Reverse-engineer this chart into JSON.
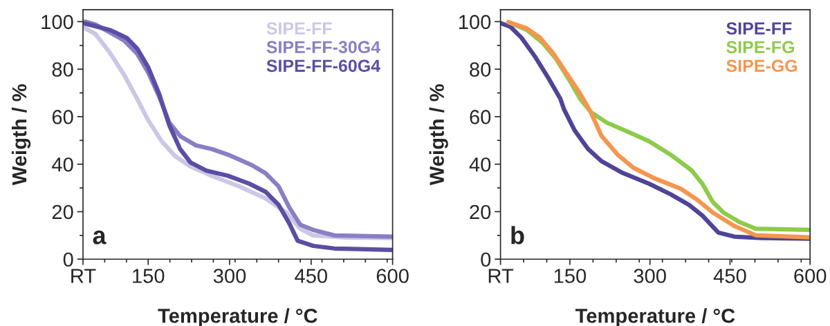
{
  "chart_data": [
    {
      "type": "line",
      "xlabel": "Temperature / °C",
      "ylabel": "Weigth / %",
      "annotations": [
        "a"
      ],
      "legend": "top right",
      "grid": false,
      "xlim": [
        30,
        600
      ],
      "xticks": [
        {
          "value": 30,
          "label": "RT"
        },
        150,
        300,
        450,
        600
      ],
      "ylim": [
        0,
        105
      ],
      "yticks": [
        0,
        20,
        40,
        60,
        80,
        100
      ],
      "series": [
        {
          "name": "SIPE-FF",
          "color": "#cbc7e5",
          "x": [
            30,
            53,
            81,
            106,
            130,
            150,
            175,
            199,
            228,
            268,
            317,
            366,
            405,
            430,
            454,
            513,
            600
          ],
          "values": [
            97.7,
            94.8,
            86.4,
            77.5,
            67.4,
            58.5,
            49.6,
            43.5,
            39,
            35,
            30.7,
            25.6,
            19.5,
            12.8,
            10,
            9.1,
            8.9
          ]
        },
        {
          "name": "SIPE-FF-30G4",
          "color": "#8a7ec4",
          "x": [
            34,
            53,
            81,
            106,
            130,
            150,
            170,
            189,
            209,
            238,
            268,
            297,
            341,
            366,
            390,
            410,
            430,
            454,
            493,
            600
          ],
          "values": [
            100,
            98.8,
            95.3,
            92,
            86.4,
            78.6,
            68.6,
            57.4,
            51.8,
            47.9,
            46.3,
            44,
            39.6,
            36.2,
            30.7,
            21.7,
            14.5,
            12.3,
            10,
            9.5
          ]
        },
        {
          "name": "SIPE-FF-60G4",
          "color": "#5a4ea4",
          "x": [
            34,
            81,
            111,
            130,
            150,
            170,
            189,
            209,
            228,
            257,
            297,
            336,
            366,
            390,
            410,
            425,
            454,
            493,
            600
          ],
          "values": [
            99.2,
            96.4,
            93.1,
            88.6,
            80.8,
            69.7,
            56.3,
            46.3,
            40.7,
            37.3,
            35.1,
            31.8,
            28.4,
            22.9,
            15,
            7.8,
            5.6,
            4.5,
            3.9
          ]
        }
      ]
    },
    {
      "type": "line",
      "xlabel": "Temperature / °C",
      "ylabel": "Weigth / %",
      "annotations": [
        "b"
      ],
      "legend": "top right",
      "grid": false,
      "xlim": [
        20,
        600
      ],
      "xticks": [
        {
          "value": 20,
          "label": "RT"
        },
        150,
        300,
        450,
        600
      ],
      "ylim": [
        0,
        105
      ],
      "yticks": [
        0,
        20,
        40,
        60,
        80,
        100
      ],
      "series": [
        {
          "name": "SIPE-FF",
          "color": "#4f4597",
          "x": [
            20,
            39,
            59,
            84,
            109,
            132,
            139,
            159,
            184,
            209,
            249,
            298,
            338,
            373,
            398,
            428,
            458,
            508,
            600
          ],
          "values": [
            99.4,
            97.8,
            93.3,
            85.5,
            76.5,
            67.6,
            63.1,
            54.2,
            46.4,
            41.3,
            36.3,
            31.8,
            27.4,
            22.9,
            18.4,
            11.2,
            9.5,
            8.9,
            8.6
          ]
        },
        {
          "name": "SIPE-FG",
          "color": "#8dcb4b",
          "x": [
            35,
            69,
            99,
            124,
            149,
            169,
            189,
            219,
            259,
            298,
            338,
            378,
            398,
            418,
            438,
            468,
            498,
            600
          ],
          "values": [
            99.8,
            96.6,
            91.1,
            84.4,
            75.4,
            67.6,
            62,
            57.5,
            53.6,
            49.7,
            44.1,
            37.4,
            31.8,
            24,
            19.6,
            15.6,
            12.8,
            12.3
          ]
        },
        {
          "name": "SIPE-GG",
          "color": "#f5964f",
          "x": [
            35,
            69,
            94,
            119,
            149,
            169,
            189,
            209,
            239,
            269,
            308,
            358,
            388,
            418,
            458,
            498,
            600
          ],
          "values": [
            99.8,
            97.2,
            93.3,
            86.6,
            76.5,
            69.8,
            62,
            52,
            44.1,
            38.5,
            34.1,
            29.6,
            25.1,
            19.6,
            14,
            10.1,
            9.2
          ]
        }
      ]
    }
  ]
}
